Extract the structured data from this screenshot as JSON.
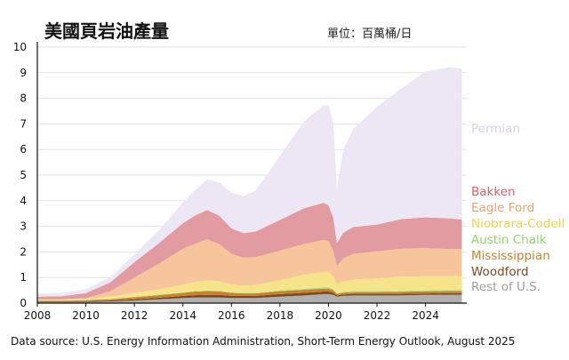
{
  "chart_data": {
    "type": "area",
    "stacked": true,
    "title": "美國頁岩油產量",
    "unit_label": "單位：百萬桶/日",
    "source": "Data source: U.S. Energy Information Administration, Short-Term Energy Outlook, August 2025",
    "xlim": [
      2008,
      2025.7
    ],
    "ylim": [
      0,
      10
    ],
    "x_ticks": [
      "2008",
      "2010",
      "2012",
      "2014",
      "2016",
      "2018",
      "2020",
      "2022",
      "2024"
    ],
    "y_ticks": [
      "0",
      "1",
      "2",
      "3",
      "4",
      "5",
      "6",
      "7",
      "8",
      "9",
      "10"
    ],
    "grid": true,
    "legend_placement": "right",
    "x": [
      2008,
      2009,
      2010,
      2011,
      2012,
      2013,
      2014,
      2014.5,
      2015,
      2015.5,
      2016,
      2016.5,
      2017,
      2018,
      2019,
      2019.8,
      2020.0,
      2020.2,
      2020.35,
      2020.6,
      2021,
      2022,
      2023,
      2024,
      2025,
      2025.5
    ],
    "series": [
      {
        "name": "Rest of U.S.",
        "color": "#b0b0b0",
        "values": [
          0.05,
          0.05,
          0.05,
          0.06,
          0.1,
          0.15,
          0.2,
          0.22,
          0.22,
          0.22,
          0.2,
          0.2,
          0.2,
          0.25,
          0.3,
          0.35,
          0.35,
          0.32,
          0.25,
          0.28,
          0.3,
          0.3,
          0.3,
          0.32,
          0.33,
          0.33
        ]
      },
      {
        "name": "Woodford",
        "color": "#7a4a22",
        "values": [
          0.02,
          0.02,
          0.03,
          0.04,
          0.05,
          0.06,
          0.08,
          0.09,
          0.1,
          0.1,
          0.08,
          0.08,
          0.08,
          0.1,
          0.1,
          0.1,
          0.1,
          0.08,
          0.05,
          0.06,
          0.06,
          0.06,
          0.06,
          0.06,
          0.06,
          0.06
        ]
      },
      {
        "name": "Mississippian",
        "color": "#c8822e",
        "values": [
          0.02,
          0.02,
          0.03,
          0.05,
          0.08,
          0.1,
          0.12,
          0.14,
          0.15,
          0.14,
          0.12,
          0.1,
          0.1,
          0.12,
          0.12,
          0.12,
          0.12,
          0.1,
          0.06,
          0.07,
          0.07,
          0.07,
          0.08,
          0.08,
          0.08,
          0.08
        ]
      },
      {
        "name": "Austin Chalk",
        "color": "#a9e08a",
        "values": [
          0.01,
          0.01,
          0.01,
          0.01,
          0.02,
          0.02,
          0.02,
          0.02,
          0.02,
          0.02,
          0.02,
          0.02,
          0.02,
          0.03,
          0.04,
          0.05,
          0.05,
          0.04,
          0.03,
          0.03,
          0.04,
          0.04,
          0.04,
          0.04,
          0.04,
          0.04
        ]
      },
      {
        "name": "Niobrara-Codell",
        "color": "#f6e48a",
        "values": [
          0.05,
          0.05,
          0.05,
          0.1,
          0.15,
          0.2,
          0.3,
          0.35,
          0.4,
          0.38,
          0.3,
          0.28,
          0.3,
          0.4,
          0.55,
          0.6,
          0.6,
          0.5,
          0.35,
          0.4,
          0.45,
          0.5,
          0.55,
          0.55,
          0.55,
          0.55
        ]
      },
      {
        "name": "Eagle Ford",
        "color": "#f7c59b",
        "values": [
          0.0,
          0.0,
          0.02,
          0.2,
          0.6,
          1.0,
          1.4,
          1.5,
          1.6,
          1.45,
          1.2,
          1.1,
          1.1,
          1.15,
          1.2,
          1.25,
          1.2,
          1.0,
          0.7,
          0.9,
          1.0,
          1.05,
          1.1,
          1.1,
          1.05,
          1.05
        ]
      },
      {
        "name": "Bakken",
        "color": "#e29ba0",
        "values": [
          0.1,
          0.12,
          0.2,
          0.35,
          0.6,
          0.8,
          1.0,
          1.1,
          1.15,
          1.1,
          1.0,
          0.95,
          1.0,
          1.2,
          1.4,
          1.45,
          1.4,
          1.3,
          0.9,
          1.0,
          1.05,
          1.05,
          1.15,
          1.2,
          1.2,
          1.15
        ]
      },
      {
        "name": "Permian",
        "color": "#ede6f5",
        "values": [
          0.12,
          0.13,
          0.16,
          0.2,
          0.3,
          0.5,
          0.8,
          1.0,
          1.2,
          1.3,
          1.4,
          1.45,
          1.6,
          2.5,
          3.4,
          3.8,
          3.9,
          3.7,
          2.1,
          3.2,
          3.8,
          4.6,
          5.1,
          5.7,
          5.9,
          5.9
        ]
      }
    ],
    "legend_colors": {
      "Permian": "#dccfe8",
      "Bakken": "#d9606c",
      "Eagle Ford": "#f0a070",
      "Niobrara-Codell": "#efd24a",
      "Austin Chalk": "#8ed66e",
      "Mississippian": "#c8822e",
      "Woodford": "#7a4a22",
      "Rest of U.S.": "#9e9e9e"
    }
  }
}
